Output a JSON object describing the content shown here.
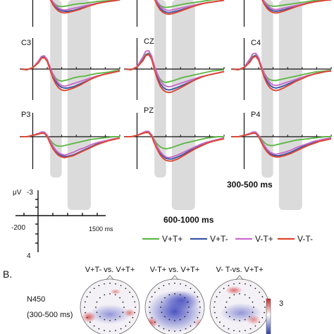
{
  "panel_a": {
    "electrodes": [
      {
        "id": "F3",
        "label": ""
      },
      {
        "id": "FZ",
        "label": ""
      },
      {
        "id": "F4",
        "label": ""
      },
      {
        "id": "C3",
        "label": "C3"
      },
      {
        "id": "CZ",
        "label": "CZ"
      },
      {
        "id": "C4",
        "label": "C4"
      },
      {
        "id": "P3",
        "label": "P3"
      },
      {
        "id": "PZ",
        "label": "PZ"
      },
      {
        "id": "P4",
        "label": "P4"
      }
    ],
    "window_labels": {
      "early": "300-500 ms",
      "late": "600-1000 ms"
    },
    "scale_axis": {
      "unit_label": "μV",
      "y_top": "-3",
      "x_left": "-200",
      "y_bottom": "4",
      "x_right": "1500 ms"
    }
  },
  "legend": [
    {
      "label": "V+T+",
      "color": "#5fb847"
    },
    {
      "label": "V+T-",
      "color": "#3a56a8"
    },
    {
      "label": "V-T+",
      "color": "#c86bc8"
    },
    {
      "label": "V-T-",
      "color": "#e0462f"
    }
  ],
  "panel_b": {
    "panel_label": "B.",
    "row_label": "N450",
    "row_sublabel": "(300-500 ms)",
    "maps": [
      {
        "title": "V+T- vs. V+T+"
      },
      {
        "title": "V-T+ vs. V+T+"
      },
      {
        "title": "V- T-vs. V+T+"
      }
    ],
    "colorbar_max": "3"
  },
  "chart_data": {
    "type": "line",
    "x_unit": "ms",
    "y_unit": "μV",
    "xlim": [
      -200,
      1500
    ],
    "ylim": [
      -3,
      4
    ],
    "y_negative_up": true,
    "highlight_windows_ms": [
      [
        300,
        500
      ],
      [
        600,
        1000
      ]
    ],
    "x": [
      -200,
      -100,
      0,
      100,
      150,
      200,
      250,
      300,
      350,
      400,
      450,
      500,
      550,
      600,
      700,
      800,
      900,
      1000,
      1100,
      1200,
      1300,
      1400,
      1500
    ],
    "panels": [
      {
        "electrode": "C3",
        "series": [
          {
            "name": "V+T+",
            "values": [
              0,
              0.1,
              -0.2,
              -1.2,
              -1.9,
              -2.0,
              -1.4,
              -0.2,
              0.8,
              1.5,
              1.8,
              1.9,
              1.8,
              1.7,
              1.4,
              1.2,
              1.1,
              0.9,
              0.7,
              0.6,
              0.5,
              0.3,
              0.2
            ]
          },
          {
            "name": "V+T-",
            "values": [
              0,
              0.1,
              -0.2,
              -1.1,
              -1.8,
              -1.9,
              -1.3,
              0.0,
              1.2,
              2.0,
              2.6,
              2.9,
              3.0,
              3.0,
              2.8,
              2.4,
              2.0,
              1.6,
              1.2,
              0.9,
              0.7,
              0.5,
              0.3
            ]
          },
          {
            "name": "V-T+",
            "values": [
              0,
              0.1,
              -0.2,
              -1.3,
              -2.0,
              -2.1,
              -1.5,
              -0.3,
              0.9,
              1.7,
              2.3,
              2.6,
              2.7,
              2.6,
              2.3,
              2.0,
              1.7,
              1.4,
              1.1,
              0.9,
              0.7,
              0.5,
              0.3
            ]
          },
          {
            "name": "V-T-",
            "values": [
              0,
              0.1,
              -0.2,
              -1.0,
              -1.7,
              -1.8,
              -1.2,
              0.2,
              1.5,
              2.4,
              3.0,
              3.3,
              3.4,
              3.3,
              3.0,
              2.6,
              2.1,
              1.6,
              1.2,
              0.9,
              0.7,
              0.5,
              0.3
            ]
          }
        ]
      },
      {
        "electrode": "CZ",
        "series": [
          {
            "name": "V+T+",
            "values": [
              0,
              0.1,
              -0.3,
              -1.5,
              -2.3,
              -2.5,
              -1.8,
              -0.4,
              0.8,
              1.6,
              2.0,
              2.1,
              2.0,
              1.9,
              1.6,
              1.3,
              1.1,
              0.9,
              0.7,
              0.5,
              0.3,
              0.2,
              0.1
            ]
          },
          {
            "name": "V+T-",
            "values": [
              0,
              0.1,
              -0.3,
              -1.4,
              -2.2,
              -2.4,
              -1.7,
              -0.1,
              1.3,
              2.3,
              2.9,
              3.2,
              3.3,
              3.2,
              2.9,
              2.5,
              2.1,
              1.7,
              1.3,
              1.0,
              0.8,
              0.6,
              0.4
            ]
          },
          {
            "name": "V-T+",
            "values": [
              0,
              0.1,
              -0.4,
              -1.9,
              -2.8,
              -2.9,
              -2.1,
              -0.5,
              0.8,
              1.8,
              2.4,
              2.7,
              2.8,
              2.7,
              2.4,
              2.1,
              1.8,
              1.5,
              1.2,
              1.0,
              0.8,
              0.6,
              0.4
            ]
          },
          {
            "name": "V-T-",
            "values": [
              0,
              0.1,
              -0.3,
              -1.3,
              -2.1,
              -2.3,
              -1.6,
              0.1,
              1.6,
              2.7,
              3.3,
              3.6,
              3.7,
              3.6,
              3.2,
              2.7,
              2.2,
              1.7,
              1.3,
              1.0,
              0.8,
              0.6,
              0.4
            ]
          }
        ]
      },
      {
        "electrode": "C4",
        "series": [
          {
            "name": "V+T+",
            "values": [
              0,
              0.1,
              -0.2,
              -1.3,
              -2.0,
              -2.2,
              -1.6,
              -0.4,
              0.7,
              1.4,
              1.7,
              1.8,
              1.8,
              1.7,
              1.5,
              1.3,
              1.1,
              0.9,
              0.7,
              0.5,
              0.4,
              0.3,
              0.2
            ]
          },
          {
            "name": "V+T-",
            "values": [
              0,
              0.1,
              -0.2,
              -1.2,
              -1.9,
              -2.1,
              -1.5,
              -0.1,
              1.1,
              2.0,
              2.6,
              2.9,
              3.0,
              2.9,
              2.6,
              2.2,
              1.8,
              1.4,
              1.1,
              0.8,
              0.6,
              0.4,
              0.3
            ]
          },
          {
            "name": "V-T+",
            "values": [
              0,
              0.1,
              -0.3,
              -1.6,
              -2.4,
              -2.5,
              -1.8,
              -0.4,
              0.8,
              1.6,
              2.2,
              2.5,
              2.6,
              2.5,
              2.2,
              1.9,
              1.6,
              1.3,
              1.0,
              0.8,
              0.6,
              0.4,
              0.3
            ]
          },
          {
            "name": "V-T-",
            "values": [
              0,
              0.1,
              -0.2,
              -1.1,
              -1.8,
              -2.0,
              -1.4,
              0.0,
              1.4,
              2.4,
              3.0,
              3.3,
              3.4,
              3.3,
              2.9,
              2.4,
              1.9,
              1.5,
              1.1,
              0.8,
              0.6,
              0.4,
              0.3
            ]
          }
        ]
      },
      {
        "electrode": "P3",
        "series": [
          {
            "name": "V+T+",
            "values": [
              0,
              0.0,
              -0.2,
              -0.4,
              -0.6,
              -0.6,
              -0.2,
              0.5,
              1.0,
              1.3,
              1.4,
              1.4,
              1.3,
              1.2,
              1.0,
              0.8,
              0.6,
              0.4,
              0.3,
              0.2,
              0.1,
              0.0,
              0.0
            ]
          },
          {
            "name": "V+T-",
            "values": [
              0,
              0.0,
              -0.2,
              -0.4,
              -0.6,
              -0.6,
              -0.1,
              0.8,
              1.6,
              2.2,
              2.6,
              2.8,
              2.9,
              2.9,
              2.7,
              2.3,
              1.9,
              1.5,
              1.1,
              0.8,
              0.6,
              0.4,
              0.2
            ]
          },
          {
            "name": "V-T+",
            "values": [
              0,
              0.0,
              -0.2,
              -0.5,
              -0.7,
              -0.7,
              -0.2,
              0.6,
              1.4,
              2.0,
              2.4,
              2.6,
              2.7,
              2.6,
              2.3,
              1.9,
              1.6,
              1.2,
              0.9,
              0.7,
              0.5,
              0.3,
              0.2
            ]
          },
          {
            "name": "V-T-",
            "values": [
              0,
              0.0,
              -0.2,
              -0.4,
              -0.5,
              -0.5,
              0.0,
              1.0,
              1.8,
              2.4,
              2.8,
              3.0,
              3.1,
              3.0,
              2.8,
              2.4,
              2.0,
              1.6,
              1.2,
              0.9,
              0.6,
              0.4,
              0.2
            ]
          }
        ]
      },
      {
        "electrode": "PZ",
        "series": [
          {
            "name": "V+T+",
            "values": [
              0,
              0.0,
              -0.2,
              -0.5,
              -0.7,
              -0.7,
              -0.3,
              0.5,
              1.1,
              1.5,
              1.7,
              1.8,
              1.7,
              1.6,
              1.3,
              1.0,
              0.8,
              0.6,
              0.4,
              0.2,
              0.1,
              0.0,
              0.0
            ]
          },
          {
            "name": "V+T-",
            "values": [
              0,
              0.0,
              -0.2,
              -0.5,
              -0.7,
              -0.7,
              -0.2,
              0.8,
              1.7,
              2.4,
              2.9,
              3.2,
              3.3,
              3.3,
              3.0,
              2.6,
              2.1,
              1.6,
              1.2,
              0.9,
              0.6,
              0.4,
              0.2
            ]
          },
          {
            "name": "V-T+",
            "values": [
              0,
              0.0,
              -0.2,
              -0.6,
              -0.8,
              -0.8,
              -0.3,
              0.6,
              1.5,
              2.2,
              2.7,
              3.0,
              3.1,
              3.0,
              2.7,
              2.3,
              1.9,
              1.5,
              1.1,
              0.8,
              0.6,
              0.4,
              0.2
            ]
          },
          {
            "name": "V-T-",
            "values": [
              0,
              0.0,
              -0.2,
              -0.5,
              -0.6,
              -0.6,
              -0.1,
              1.0,
              1.9,
              2.7,
              3.2,
              3.5,
              3.6,
              3.6,
              3.3,
              2.8,
              2.3,
              1.8,
              1.4,
              1.0,
              0.7,
              0.5,
              0.3
            ]
          }
        ]
      },
      {
        "electrode": "P4",
        "series": [
          {
            "name": "V+T+",
            "values": [
              0,
              0.0,
              -0.2,
              -0.4,
              -0.6,
              -0.6,
              -0.2,
              0.4,
              0.9,
              1.2,
              1.3,
              1.3,
              1.2,
              1.1,
              0.9,
              0.7,
              0.5,
              0.4,
              0.3,
              0.2,
              0.1,
              0.0,
              0.0
            ]
          },
          {
            "name": "V+T-",
            "values": [
              0,
              0.0,
              -0.2,
              -0.4,
              -0.6,
              -0.6,
              -0.1,
              0.7,
              1.5,
              2.1,
              2.5,
              2.7,
              2.8,
              2.8,
              2.6,
              2.3,
              1.9,
              1.5,
              1.1,
              0.8,
              0.6,
              0.4,
              0.2
            ]
          },
          {
            "name": "V-T+",
            "values": [
              0,
              0.0,
              -0.2,
              -0.5,
              -0.7,
              -0.7,
              -0.2,
              0.6,
              1.3,
              1.9,
              2.3,
              2.5,
              2.6,
              2.5,
              2.3,
              2.0,
              1.6,
              1.3,
              1.0,
              0.7,
              0.5,
              0.3,
              0.2
            ]
          },
          {
            "name": "V-T-",
            "values": [
              0,
              0.0,
              -0.2,
              -0.4,
              -0.5,
              -0.5,
              0.0,
              0.9,
              1.7,
              2.3,
              2.7,
              2.9,
              3.0,
              3.0,
              2.8,
              2.5,
              2.1,
              1.7,
              1.3,
              1.0,
              0.7,
              0.5,
              0.3
            ]
          }
        ]
      }
    ]
  }
}
